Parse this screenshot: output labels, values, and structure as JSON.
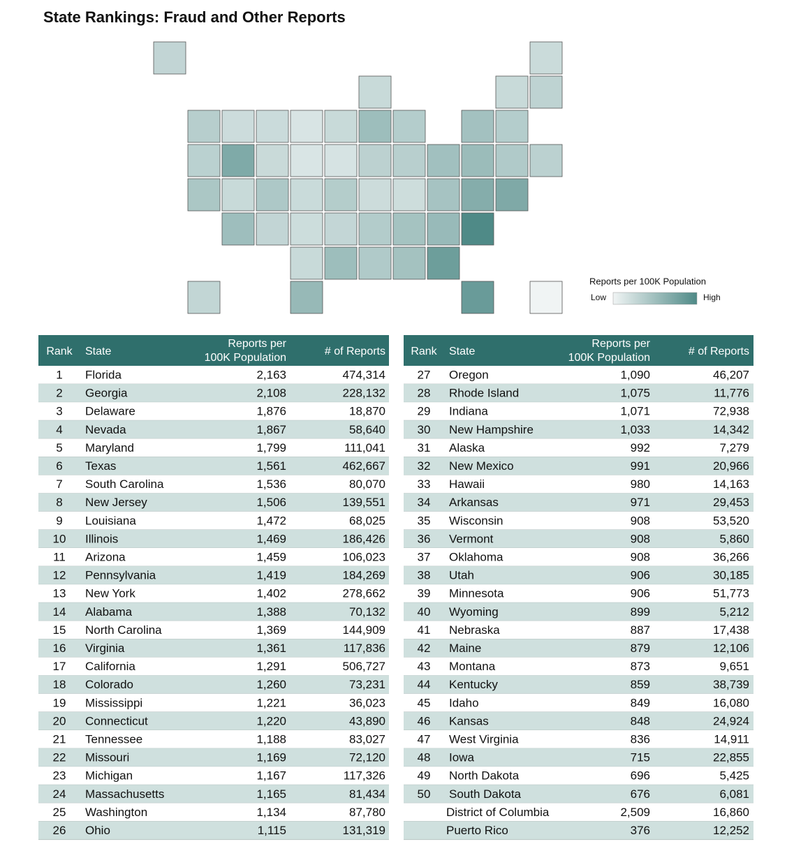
{
  "header": {
    "title": "State Rankings: Fraud and Other Reports"
  },
  "legend": {
    "title": "Reports per 100K Population",
    "low": "Low",
    "high": "High"
  },
  "tables": [
    {
      "columns": [
        [
          "Rank"
        ],
        [
          "State"
        ],
        [
          "Reports per",
          "100K Population"
        ],
        [
          "# of Reports"
        ]
      ],
      "rows": [
        {
          "rank": "1",
          "state": "Florida",
          "rate": "2,163",
          "reports": "474,314"
        },
        {
          "rank": "2",
          "state": "Georgia",
          "rate": "2,108",
          "reports": "228,132"
        },
        {
          "rank": "3",
          "state": "Delaware",
          "rate": "1,876",
          "reports": "18,870"
        },
        {
          "rank": "4",
          "state": "Nevada",
          "rate": "1,867",
          "reports": "58,640"
        },
        {
          "rank": "5",
          "state": "Maryland",
          "rate": "1,799",
          "reports": "111,041"
        },
        {
          "rank": "6",
          "state": "Texas",
          "rate": "1,561",
          "reports": "462,667"
        },
        {
          "rank": "7",
          "state": "South Carolina",
          "rate": "1,536",
          "reports": "80,070"
        },
        {
          "rank": "8",
          "state": "New Jersey",
          "rate": "1,506",
          "reports": "139,551"
        },
        {
          "rank": "9",
          "state": "Louisiana",
          "rate": "1,472",
          "reports": "68,025"
        },
        {
          "rank": "10",
          "state": "Illinois",
          "rate": "1,469",
          "reports": "186,426"
        },
        {
          "rank": "11",
          "state": "Arizona",
          "rate": "1,459",
          "reports": "106,023"
        },
        {
          "rank": "12",
          "state": "Pennsylvania",
          "rate": "1,419",
          "reports": "184,269"
        },
        {
          "rank": "13",
          "state": "New York",
          "rate": "1,402",
          "reports": "278,662"
        },
        {
          "rank": "14",
          "state": "Alabama",
          "rate": "1,388",
          "reports": "70,132"
        },
        {
          "rank": "15",
          "state": "North Carolina",
          "rate": "1,369",
          "reports": "144,909"
        },
        {
          "rank": "16",
          "state": "Virginia",
          "rate": "1,361",
          "reports": "117,836"
        },
        {
          "rank": "17",
          "state": "California",
          "rate": "1,291",
          "reports": "506,727"
        },
        {
          "rank": "18",
          "state": "Colorado",
          "rate": "1,260",
          "reports": "73,231"
        },
        {
          "rank": "19",
          "state": "Mississippi",
          "rate": "1,221",
          "reports": "36,023"
        },
        {
          "rank": "20",
          "state": "Connecticut",
          "rate": "1,220",
          "reports": "43,890"
        },
        {
          "rank": "21",
          "state": "Tennessee",
          "rate": "1,188",
          "reports": "83,027"
        },
        {
          "rank": "22",
          "state": "Missouri",
          "rate": "1,169",
          "reports": "72,120"
        },
        {
          "rank": "23",
          "state": "Michigan",
          "rate": "1,167",
          "reports": "117,326"
        },
        {
          "rank": "24",
          "state": "Massachusetts",
          "rate": "1,165",
          "reports": "81,434"
        },
        {
          "rank": "25",
          "state": "Washington",
          "rate": "1,134",
          "reports": "87,780"
        },
        {
          "rank": "26",
          "state": "Ohio",
          "rate": "1,115",
          "reports": "131,319"
        }
      ]
    },
    {
      "columns": [
        [
          "Rank"
        ],
        [
          "State"
        ],
        [
          "Reports per",
          "100K Population"
        ],
        [
          "# of Reports"
        ]
      ],
      "rows": [
        {
          "rank": "27",
          "state": "Oregon",
          "rate": "1,090",
          "reports": "46,207"
        },
        {
          "rank": "28",
          "state": "Rhode Island",
          "rate": "1,075",
          "reports": "11,776"
        },
        {
          "rank": "29",
          "state": "Indiana",
          "rate": "1,071",
          "reports": "72,938"
        },
        {
          "rank": "30",
          "state": "New Hampshire",
          "rate": "1,033",
          "reports": "14,342"
        },
        {
          "rank": "31",
          "state": "Alaska",
          "rate": "992",
          "reports": "7,279"
        },
        {
          "rank": "32",
          "state": "New Mexico",
          "rate": "991",
          "reports": "20,966"
        },
        {
          "rank": "33",
          "state": "Hawaii",
          "rate": "980",
          "reports": "14,163"
        },
        {
          "rank": "34",
          "state": "Arkansas",
          "rate": "971",
          "reports": "29,453"
        },
        {
          "rank": "35",
          "state": "Wisconsin",
          "rate": "908",
          "reports": "53,520"
        },
        {
          "rank": "36",
          "state": "Vermont",
          "rate": "908",
          "reports": "5,860"
        },
        {
          "rank": "37",
          "state": "Oklahoma",
          "rate": "908",
          "reports": "36,266"
        },
        {
          "rank": "38",
          "state": "Utah",
          "rate": "906",
          "reports": "30,185"
        },
        {
          "rank": "39",
          "state": "Minnesota",
          "rate": "906",
          "reports": "51,773"
        },
        {
          "rank": "40",
          "state": "Wyoming",
          "rate": "899",
          "reports": "5,212"
        },
        {
          "rank": "41",
          "state": "Nebraska",
          "rate": "887",
          "reports": "17,438"
        },
        {
          "rank": "42",
          "state": "Maine",
          "rate": "879",
          "reports": "12,106"
        },
        {
          "rank": "43",
          "state": "Montana",
          "rate": "873",
          "reports": "9,651"
        },
        {
          "rank": "44",
          "state": "Kentucky",
          "rate": "859",
          "reports": "38,739"
        },
        {
          "rank": "45",
          "state": "Idaho",
          "rate": "849",
          "reports": "16,080"
        },
        {
          "rank": "46",
          "state": "Kansas",
          "rate": "848",
          "reports": "24,924"
        },
        {
          "rank": "47",
          "state": "West Virginia",
          "rate": "836",
          "reports": "14,911"
        },
        {
          "rank": "48",
          "state": "Iowa",
          "rate": "715",
          "reports": "22,855"
        },
        {
          "rank": "49",
          "state": "North Dakota",
          "rate": "696",
          "reports": "5,425"
        },
        {
          "rank": "50",
          "state": "South Dakota",
          "rate": "676",
          "reports": "6,081"
        },
        {
          "state": "District of Columbia",
          "rate": "2,509",
          "reports": "16,860"
        },
        {
          "state": "Puerto Rico",
          "rate": "376",
          "reports": "12,252"
        }
      ]
    }
  ]
}
